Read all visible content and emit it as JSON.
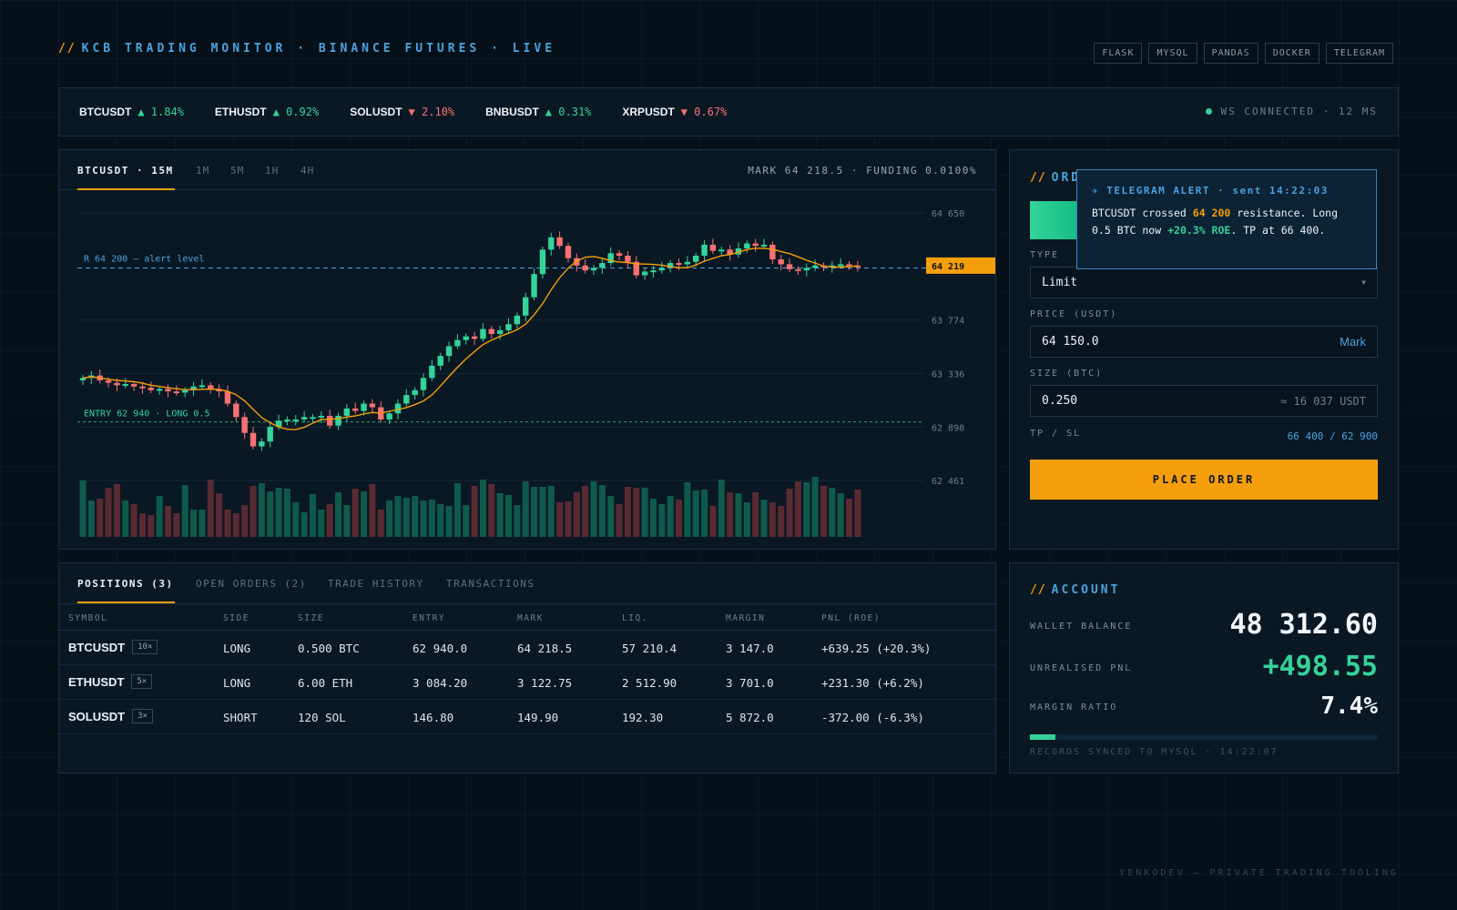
{
  "header": {
    "slashes": "//",
    "title": "KCB TRADING MONITOR · BINANCE FUTURES · LIVE",
    "tags": [
      "FLASK",
      "MYSQL",
      "PANDAS",
      "DOCKER",
      "TELEGRAM"
    ]
  },
  "ticker": {
    "items": [
      {
        "symbol": "BTCUSDT",
        "dir": "up",
        "arrow": "▲",
        "change": "1.84%"
      },
      {
        "symbol": "ETHUSDT",
        "dir": "up",
        "arrow": "▲",
        "change": "0.92%"
      },
      {
        "symbol": "SOLUSDT",
        "dir": "down",
        "arrow": "▼",
        "change": "2.10%"
      },
      {
        "symbol": "BNBUSDT",
        "dir": "up",
        "arrow": "▲",
        "change": "0.31%"
      },
      {
        "symbol": "XRPUSDT",
        "dir": "down",
        "arrow": "▼",
        "change": "0.67%"
      }
    ],
    "ws_status": "WS CONNECTED · 12 MS"
  },
  "chart_panel": {
    "active_tab": "BTCUSDT · 15M",
    "timeframes": [
      "1M",
      "5M",
      "1H",
      "4H"
    ],
    "mark_info": "MARK 64 218.5 · FUNDING 0.0100%"
  },
  "chart_data": {
    "type": "candlestick",
    "y_ticks": [
      "64 650",
      "63 774",
      "63 336",
      "62 898",
      "62 461"
    ],
    "y_tick_values": [
      64650,
      63774,
      63336,
      62898,
      62461
    ],
    "current_price_label": "64 219",
    "current_price": 64219,
    "resistance_label": "R 64 200 — alert level",
    "resistance": 64200,
    "entry_label": "ENTRY 62 940 · LONG 0.5",
    "entry": 62940,
    "close": [
      63300,
      63320,
      63280,
      63260,
      63240,
      63250,
      63230,
      63220,
      63200,
      63210,
      63190,
      63180,
      63200,
      63230,
      63240,
      63210,
      63190,
      63090,
      62980,
      62850,
      62740,
      62780,
      62900,
      62950,
      62960,
      62960,
      62980,
      62980,
      62990,
      62910,
      62990,
      63050,
      63030,
      63090,
      63060,
      62960,
      63010,
      63090,
      63160,
      63200,
      63300,
      63400,
      63480,
      63560,
      63610,
      63640,
      63620,
      63700,
      63660,
      63690,
      63740,
      63810,
      63960,
      64150,
      64350,
      64450,
      64380,
      64280,
      64220,
      64180,
      64200,
      64240,
      64320,
      64300,
      64250,
      64140,
      64170,
      64180,
      64200,
      64240,
      64230,
      64250,
      64300,
      64390,
      64340,
      64350,
      64310,
      64360,
      64400,
      64380,
      64390,
      64270,
      64230,
      64190,
      64180,
      64200,
      64220,
      64210,
      64220,
      64230,
      64220,
      64219
    ],
    "volume": [
      62,
      40,
      42,
      54,
      58,
      40,
      36,
      26,
      24,
      45,
      34,
      26,
      57,
      30,
      30,
      63,
      48,
      30,
      26,
      35,
      56,
      59,
      50,
      54,
      53,
      38,
      27,
      47,
      30,
      36,
      49,
      35,
      53,
      50,
      58,
      30,
      40,
      45,
      43,
      45,
      40,
      41,
      36,
      34,
      59,
      35,
      56,
      63,
      58,
      48,
      46,
      35,
      61,
      55,
      55,
      56,
      38,
      39,
      49,
      56,
      61,
      57,
      45,
      36,
      55,
      54,
      54,
      42,
      36,
      45,
      41,
      60,
      51,
      52,
      34,
      63,
      49,
      48,
      38,
      49,
      41,
      38,
      34,
      53,
      61,
      60,
      66,
      56,
      54,
      48,
      42,
      52
    ]
  },
  "order_panel": {
    "slashes": "//",
    "title": "ORDER",
    "type_label": "TYPE",
    "type_value": "Limit",
    "price_label": "PRICE (USDT)",
    "price_value": "64 150.0",
    "price_suffix": "Mark",
    "size_label": "SIZE (BTC)",
    "size_value": "0.250",
    "size_suffix": "≈ 16 037 USDT",
    "tpsl_label": "TP / SL",
    "tpsl_value": "66 400 / 62 900",
    "button": "PLACE ORDER"
  },
  "alert": {
    "header": "✈ TELEGRAM ALERT · sent 14:22:03",
    "p1": "BTCUSDT crossed ",
    "p2": "64 200",
    "p3": " resistance. Long 0.5 BTC now ",
    "p4": "+20.3% ROE",
    "p5": ". TP at 66 400."
  },
  "positions": {
    "tabs": [
      "POSITIONS (3)",
      "OPEN ORDERS (2)",
      "TRADE HISTORY",
      "TRANSACTIONS"
    ],
    "columns": [
      "SYMBOL",
      "SIDE",
      "SIZE",
      "ENTRY",
      "MARK",
      "LIQ.",
      "MARGIN",
      "PNL (ROE)"
    ],
    "rows": [
      {
        "symbol": "BTCUSDT",
        "lev": "10×",
        "side": "LONG",
        "size": "0.500 BTC",
        "entry": "62 940.0",
        "mark": "64 218.5",
        "liq": "57 210.4",
        "margin": "3 147.0",
        "pnl": "+639.25 (+20.3%)"
      },
      {
        "symbol": "ETHUSDT",
        "lev": "5×",
        "side": "LONG",
        "size": "6.00 ETH",
        "entry": "3 084.20",
        "mark": "3 122.75",
        "liq": "2 512.90",
        "margin": "3 701.0",
        "pnl": "+231.30 (+6.2%)"
      },
      {
        "symbol": "SOLUSDT",
        "lev": "3×",
        "side": "SHORT",
        "size": "120 SOL",
        "entry": "146.80",
        "mark": "149.90",
        "liq": "192.30",
        "margin": "5 872.0",
        "pnl": "-372.00 (-6.3%)"
      }
    ]
  },
  "account": {
    "slashes": "//",
    "title": "ACCOUNT",
    "wallet_label": "WALLET BALANCE",
    "wallet_value": "48 312.60",
    "upnl_label": "UNREALISED PNL",
    "upnl_value": "+498.55",
    "margin_label": "MARGIN RATIO",
    "margin_value": "7.4%",
    "margin_ratio": 0.074,
    "sync": "RECORDS SYNCED TO MYSQL · 14:22:07"
  },
  "footer": "YENKODEV — PRIVATE TRADING TOOLING",
  "colors": {
    "accent": "#f59e0b",
    "info": "#4aa3df",
    "up": "#34d399",
    "down": "#f87171",
    "bg": "#061019",
    "panel": "#0a1824"
  }
}
